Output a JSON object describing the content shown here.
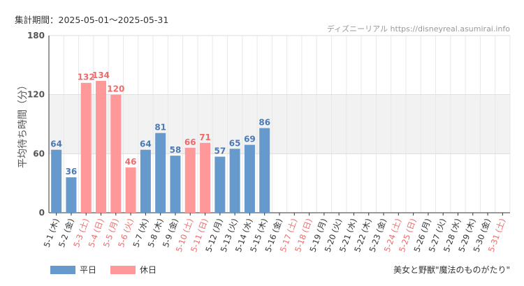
{
  "header": {
    "period": "集計期間：2025-05-01〜2025-05-31",
    "source": "ディズニーリアル https://disneyreal.asumirai.info"
  },
  "legend": {
    "weekday": "平日",
    "holiday": "休日"
  },
  "attraction": "美女と野獣\"魔法のものがたり\"",
  "colors": {
    "weekday": "#6699cc",
    "holiday": "#ff9999",
    "weekday_text": "#4a7ab5",
    "holiday_text": "#ee6b6b"
  },
  "chart_data": {
    "type": "bar",
    "ylabel": "平均待ち時間（分）",
    "ylim": [
      0,
      180
    ],
    "yticks": [
      0,
      60,
      120,
      180
    ],
    "categories": [
      "5-1 (木)",
      "5-2 (金)",
      "5-3 (土)",
      "5-4 (日)",
      "5-5 (月)",
      "5-6 (火)",
      "5-7 (水)",
      "5-8 (木)",
      "5-9 (金)",
      "5-10 (土)",
      "5-11 (日)",
      "5-12 (月)",
      "5-13 (火)",
      "5-14 (水)",
      "5-15 (木)",
      "5-16 (金)",
      "5-17 (土)",
      "5-18 (日)",
      "5-19 (月)",
      "5-20 (火)",
      "5-21 (水)",
      "5-22 (木)",
      "5-23 (金)",
      "5-24 (土)",
      "5-25 (日)",
      "5-26 (月)",
      "5-27 (火)",
      "5-28 (水)",
      "5-29 (木)",
      "5-30 (金)",
      "5-31 (土)"
    ],
    "values": [
      64,
      36,
      132,
      134,
      120,
      46,
      64,
      81,
      58,
      66,
      71,
      57,
      65,
      69,
      86,
      null,
      null,
      null,
      null,
      null,
      null,
      null,
      null,
      null,
      null,
      null,
      null,
      null,
      null,
      null,
      null
    ],
    "day_type": [
      "weekday",
      "weekday",
      "holiday",
      "holiday",
      "holiday",
      "holiday",
      "weekday",
      "weekday",
      "weekday",
      "holiday",
      "holiday",
      "weekday",
      "weekday",
      "weekday",
      "weekday",
      "weekday",
      "holiday",
      "holiday",
      "weekday",
      "weekday",
      "weekday",
      "weekday",
      "weekday",
      "holiday",
      "holiday",
      "weekday",
      "weekday",
      "weekday",
      "weekday",
      "weekday",
      "holiday"
    ],
    "series": [
      {
        "name": "平日"
      },
      {
        "name": "休日"
      }
    ]
  }
}
